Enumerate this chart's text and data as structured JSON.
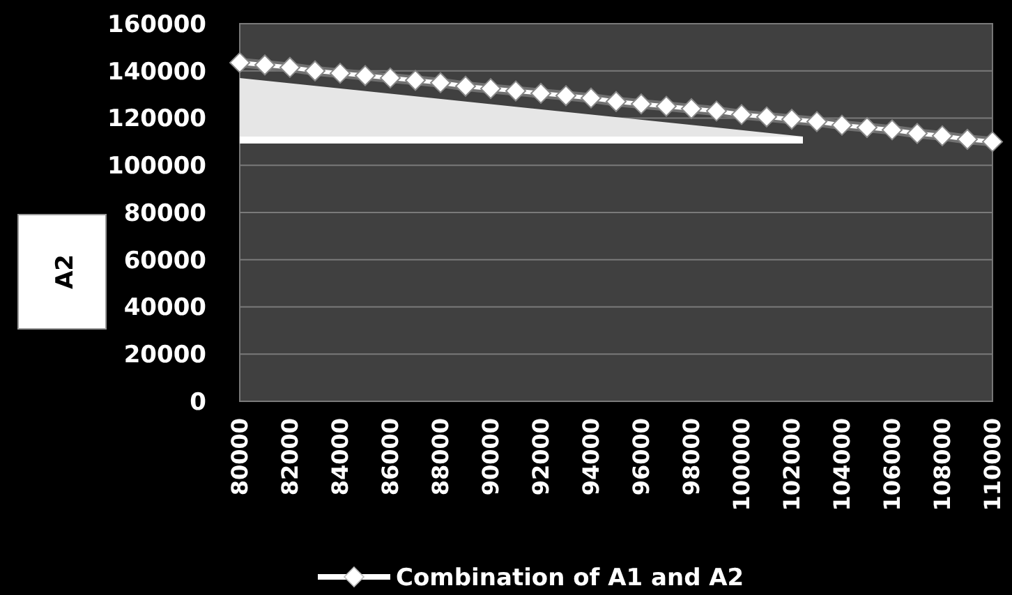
{
  "chart_data": {
    "type": "line",
    "ylabel": "A2",
    "x": [
      80000,
      81000,
      82000,
      83000,
      84000,
      85000,
      86000,
      87000,
      88000,
      89000,
      90000,
      91000,
      92000,
      93000,
      94000,
      95000,
      96000,
      97000,
      98000,
      99000,
      100000,
      101000,
      102000,
      103000,
      104000,
      105000,
      106000,
      107000,
      108000,
      109000,
      110000
    ],
    "series": [
      {
        "name": "Combination of A1 and A2",
        "color": "#ffffff",
        "values": [
          143500,
          142500,
          141500,
          140000,
          139000,
          138000,
          137000,
          136000,
          135000,
          133500,
          132500,
          131500,
          130500,
          129500,
          128500,
          127000,
          126000,
          125000,
          124000,
          123000,
          121500,
          120500,
          119500,
          118500,
          117000,
          116000,
          115000,
          113500,
          112500,
          111000,
          110000
        ]
      }
    ],
    "xlim": [
      80000,
      110000
    ],
    "xticks": [
      80000,
      82000,
      84000,
      86000,
      88000,
      90000,
      92000,
      94000,
      96000,
      98000,
      100000,
      102000,
      104000,
      106000,
      108000,
      110000
    ],
    "ylim": [
      0,
      160000
    ],
    "yticks": [
      0,
      20000,
      40000,
      60000,
      80000,
      100000,
      120000,
      140000,
      160000
    ],
    "grid": "y",
    "legend": "bottom",
    "marker": "diamond",
    "line_style": "solid"
  }
}
